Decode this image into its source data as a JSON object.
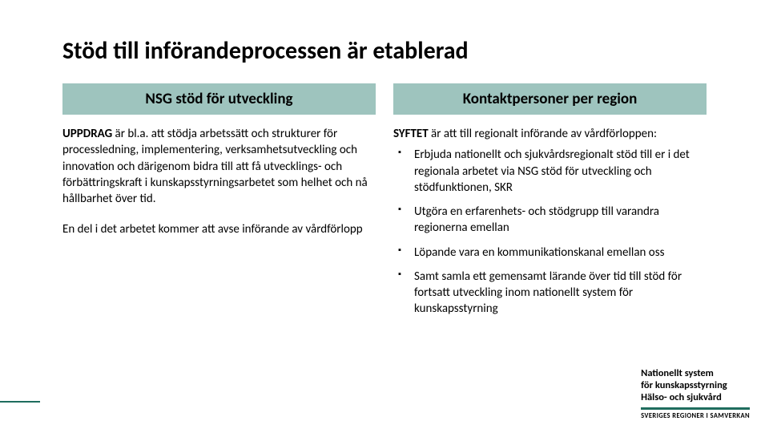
{
  "colors": {
    "header_bg": "#9ec4be",
    "accent": "#1f6d5e",
    "text": "#000000",
    "background": "#ffffff"
  },
  "title": "Stöd till införandeprocessen är etablerad",
  "left": {
    "header": "NSG stöd för utveckling",
    "para1_lead": "UPPDRAG",
    "para1_rest": " är bl.a. att stödja arbetssätt och strukturer för processledning, implementering, verksamhetsutveckling och innovation och därigenom bidra till att få utvecklings- och förbättringskraft i kunskapsstyrningsarbetet som helhet och nå hållbarhet över tid.",
    "para2": "En del i det arbetet kommer att avse införande av vårdförlopp"
  },
  "right": {
    "header": "Kontaktpersoner per region",
    "intro_lead": "SYFTET",
    "intro_rest": " är att till regionalt införande av vårdförloppen:",
    "bullets": [
      "Erbjuda nationellt och sjukvårdsregionalt stöd till er i det regionala arbetet via NSG stöd för utveckling och stödfunktionen, SKR",
      "Utgöra en erfarenhets- och stödgrupp till varandra regionerna emellan",
      "Löpande vara en kommunikationskanal emellan oss",
      "Samt samla ett gemensamt lärande över tid till stöd för fortsatt utveckling inom nationellt system för kunskapsstyrning"
    ]
  },
  "footer": {
    "line1": "Nationellt system",
    "line2": "för kunskapsstyrning",
    "line3": "Hälso- och sjukvård",
    "sub": "SVERIGES REGIONER I SAMVERKAN"
  }
}
